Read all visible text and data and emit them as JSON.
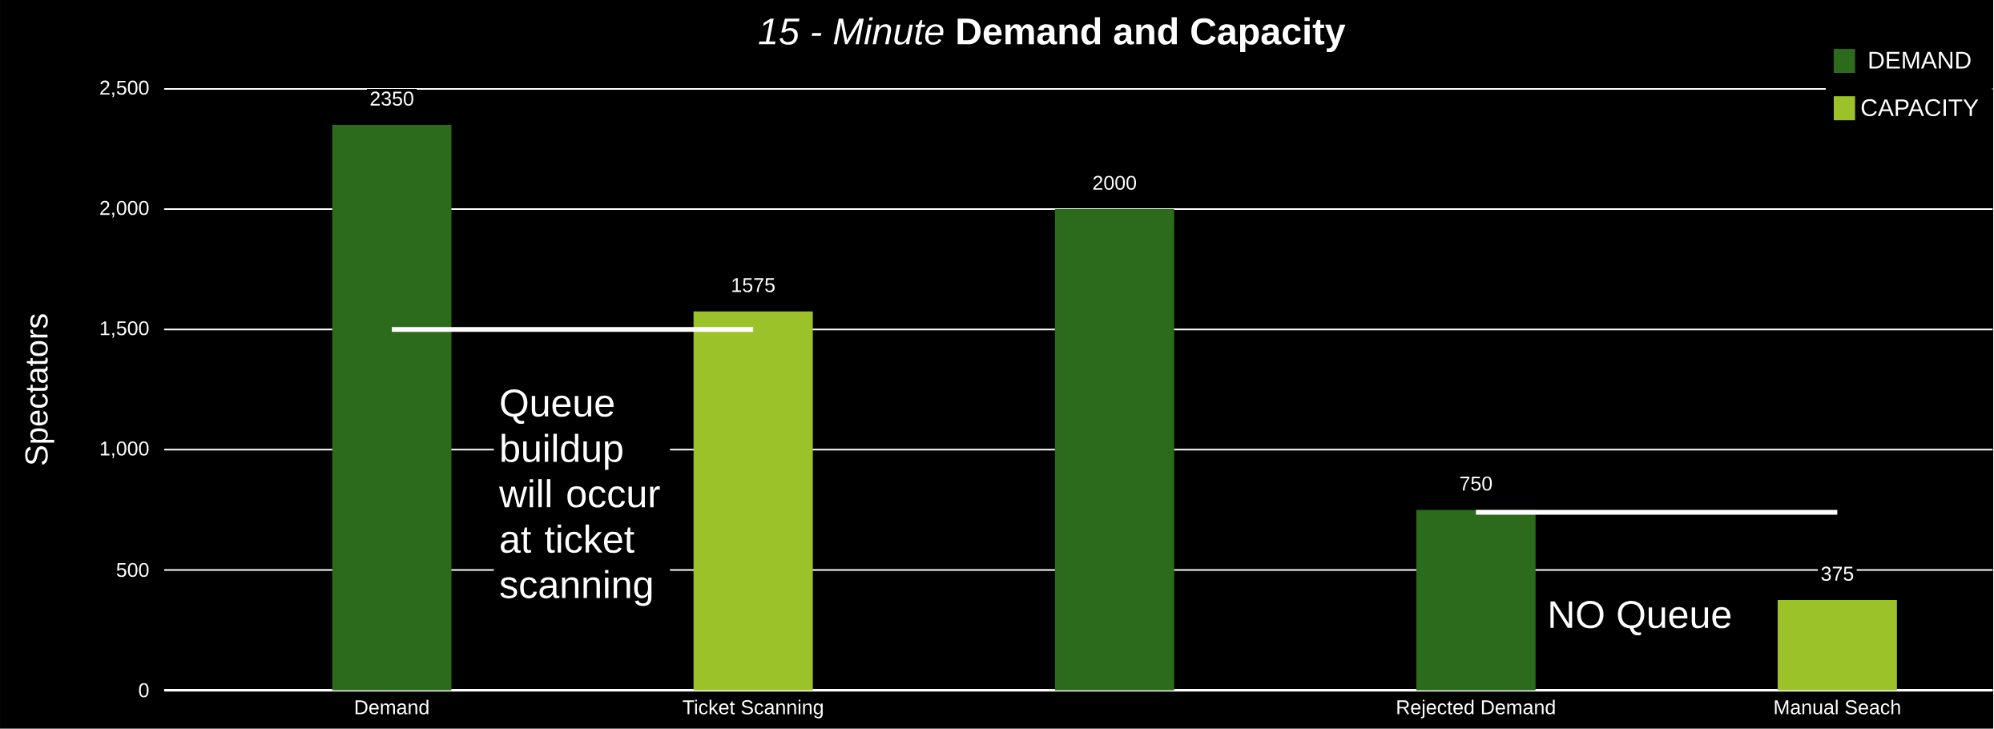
{
  "chart_data": {
    "type": "bar",
    "title": "*15 - Minute* **Demand and Capacity**",
    "ylabel": "Spectators",
    "categories": [
      "Demand",
      "Ticket Scanning",
      null,
      "Rejected Demand",
      "Manual Seach"
    ],
    "series": [
      {
        "name": "DEMAND",
        "color": "#2c6b1c",
        "values": [
          2350,
          null,
          2000,
          750,
          null
        ],
        "value_labels": [
          "2350",
          null,
          "2000",
          "750",
          null
        ]
      },
      {
        "name": "CAPACITY",
        "color": "#9cc22a",
        "values": [
          null,
          1575,
          null,
          null,
          375
        ],
        "value_labels": [
          null,
          "1575",
          null,
          null,
          "375"
        ]
      },
      {
        "type": "line",
        "color": "#ffffff",
        "x": [
          "Demand",
          "Ticket Scanning"
        ],
        "values": [
          1500,
          1500
        ]
      },
      {
        "type": "line",
        "color": "#ffffff",
        "x": [
          "Rejected Demand",
          "Manual Seach"
        ],
        "values": [
          740,
          740
        ]
      }
    ],
    "ylim": [
      0,
      2500
    ],
    "yticks": [
      {
        "value": 0,
        "label": "0"
      },
      {
        "value": 500,
        "label": "500"
      },
      {
        "value": 1000,
        "label": "1,000"
      },
      {
        "value": 1500,
        "label": "1,500"
      },
      {
        "value": 2000,
        "label": "2,000"
      },
      {
        "value": 2500,
        "label": "2,500"
      }
    ],
    "grid": "y",
    "legend": "top right",
    "annotations": [
      "Queue buildup will occur at ticket scanning",
      "NO Queue"
    ]
  }
}
